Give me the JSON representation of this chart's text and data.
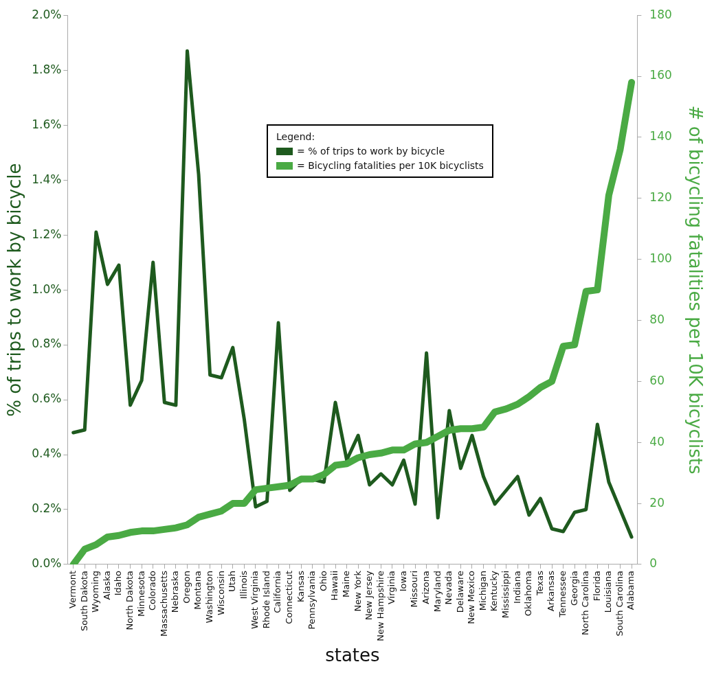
{
  "chart_data": {
    "type": "line",
    "xlabel": "states",
    "ylabel": "% of trips to work by bicycle",
    "y2label": "# of bicycling fatalities per 10K bicyclists",
    "legend_title": "Legend:",
    "legend": "top",
    "grid": false,
    "marker": "none",
    "line_style": "solid",
    "categories": [
      "Vermont",
      "South Dakota",
      "Wyoming",
      "Alaska",
      "Idaho",
      "North Dakota",
      "Minnesota",
      "Colorado",
      "Massachusetts",
      "Nebraska",
      "Oregon",
      "Montana",
      "Washington",
      "Wisconsin",
      "Utah",
      "Illinois",
      "West Virginia",
      "Rhode Island",
      "California",
      "Connecticut",
      "Kansas",
      "Pennsylvania",
      "Ohio",
      "Hawaii",
      "Maine",
      "New York",
      "New Jersey",
      "New Hampshire",
      "Virginia",
      "Iowa",
      "Missouri",
      "Arizona",
      "Maryland",
      "Nevada",
      "Delaware",
      "New Mexico",
      "Michigan",
      "Kentucky",
      "Mississippi",
      "Indiana",
      "Oklahoma",
      "Texas",
      "Arkansas",
      "Tennessee",
      "Georgia",
      "North Carolina",
      "Florida",
      "Louisiana",
      "South Carolina",
      "Alabama"
    ],
    "ylim": [
      0,
      2
    ],
    "yticks": [
      {
        "value": 0,
        "label": "0.0%"
      },
      {
        "value": 0.2,
        "label": "0.2%"
      },
      {
        "value": 0.4,
        "label": "0.4%"
      },
      {
        "value": 0.6,
        "label": "0.6%"
      },
      {
        "value": 0.8,
        "label": "0.8%"
      },
      {
        "value": 1,
        "label": "1.0%"
      },
      {
        "value": 1.2,
        "label": "1.2%"
      },
      {
        "value": 1.4,
        "label": "1.4%"
      },
      {
        "value": 1.6,
        "label": "1.6%"
      },
      {
        "value": 1.8,
        "label": "1.8%"
      },
      {
        "value": 2,
        "label": "2.0%"
      }
    ],
    "y2lim": [
      0,
      180
    ],
    "y2ticks": [
      0,
      20,
      40,
      60,
      80,
      100,
      120,
      140,
      160,
      180
    ],
    "series": [
      {
        "name": "= % of trips to work by bicycle",
        "color": "#1e5a1e",
        "values": [
          0.48,
          0.49,
          1.21,
          1.02,
          1.09,
          0.58,
          0.67,
          1.1,
          0.59,
          0.58,
          1.87,
          1.42,
          0.69,
          0.68,
          0.79,
          0.53,
          0.21,
          0.23,
          0.88,
          0.27,
          0.31,
          0.31,
          0.3,
          0.59,
          0.38,
          0.47,
          0.29,
          0.33,
          0.29,
          0.38,
          0.22,
          0.77,
          0.17,
          0.56,
          0.35,
          0.47,
          0.32,
          0.22,
          0.27,
          0.32,
          0.18,
          0.24,
          0.13,
          0.12,
          0.19,
          0.2,
          0.51,
          0.3,
          0.2,
          0.1
        ]
      },
      {
        "name": "= Bicycling fatalities per 10K bicyclists",
        "color": "#4aaa44",
        "axis": "y2",
        "values": [
          0,
          5,
          6.5,
          9,
          9.5,
          10.5,
          11,
          11,
          11.5,
          12,
          13,
          15.5,
          16.5,
          17.5,
          20,
          20,
          24.5,
          25,
          25.5,
          26,
          28,
          28,
          29.5,
          32.5,
          33,
          35,
          36,
          36.5,
          37.5,
          37.5,
          39.5,
          40,
          42,
          44,
          44.5,
          44.5,
          45,
          50,
          51,
          52.5,
          55,
          58,
          60,
          71.5,
          72,
          89.5,
          90,
          121,
          136,
          158
        ]
      }
    ]
  }
}
